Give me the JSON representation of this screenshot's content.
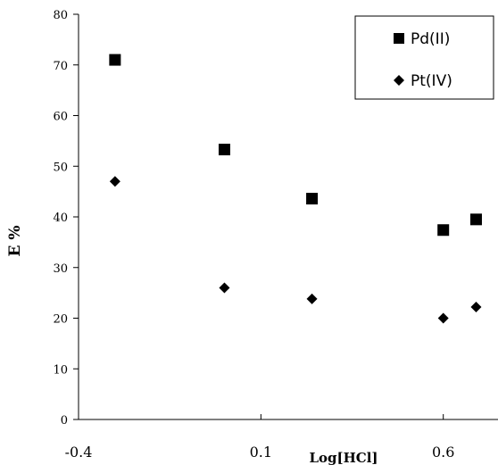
{
  "chart_data": {
    "type": "scatter",
    "title": "",
    "xlabel": "Log[HCl]",
    "ylabel": "E %",
    "xlim": [
      -0.4,
      0.75
    ],
    "ylim": [
      0,
      80
    ],
    "x_ticks": [
      -0.4,
      0.1,
      0.6
    ],
    "x_tick_labels": [
      "-0.4",
      "0.1",
      "0.6"
    ],
    "y_ticks": [
      0,
      10,
      20,
      30,
      40,
      50,
      60,
      70,
      80
    ],
    "y_tick_labels": [
      "0",
      "10",
      "20",
      "30",
      "40",
      "50",
      "60",
      "70",
      "80"
    ],
    "grid": false,
    "legend_position": "top-right",
    "series": [
      {
        "name": "Pd(II)",
        "marker": "square",
        "color": "#000000",
        "points": [
          {
            "x": -0.3,
            "y": 71
          },
          {
            "x": 0.0,
            "y": 53.3
          },
          {
            "x": 0.24,
            "y": 43.6
          },
          {
            "x": 0.6,
            "y": 37.4
          },
          {
            "x": 0.69,
            "y": 39.5
          }
        ]
      },
      {
        "name": "Pt(IV)",
        "marker": "diamond",
        "color": "#000000",
        "points": [
          {
            "x": -0.3,
            "y": 47
          },
          {
            "x": 0.0,
            "y": 26
          },
          {
            "x": 0.24,
            "y": 23.8
          },
          {
            "x": 0.6,
            "y": 20
          },
          {
            "x": 0.69,
            "y": 22.2
          }
        ]
      }
    ]
  }
}
